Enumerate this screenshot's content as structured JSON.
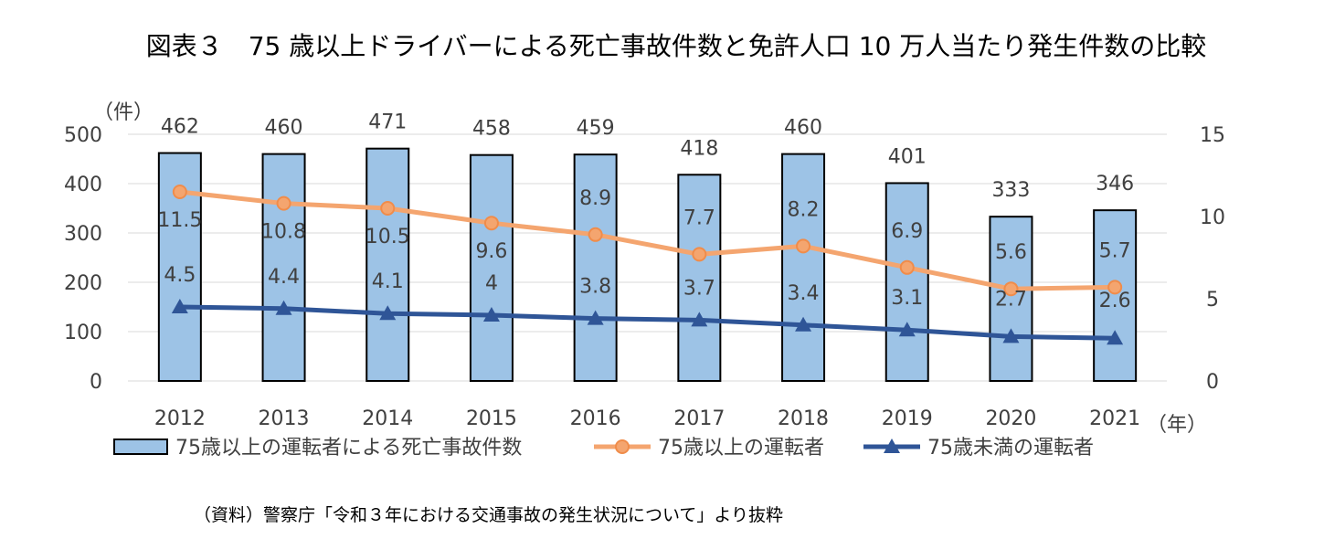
{
  "title": "図表３　75 歳以上ドライバーによる死亡事故件数と免許人口 10 万人当たり発生件数の比較",
  "source": "（資料）警察庁「令和３年における交通事故の発生状況について」より抜粋",
  "colors": {
    "bar_fill": "#9dc3e6",
    "bar_stroke": "#000000",
    "line_75_over": "#f4a56f",
    "line_75_under": "#2f5597",
    "grid": "#d9d9d9",
    "text": "#404040"
  },
  "chart_data": {
    "type": "bar",
    "categories": [
      "2012",
      "2013",
      "2014",
      "2015",
      "2016",
      "2017",
      "2018",
      "2019",
      "2020",
      "2021"
    ],
    "series": [
      {
        "name": "75歳以上の運転者による死亡事故件数",
        "type": "bar",
        "axis": "left",
        "values": [
          462,
          460,
          471,
          458,
          459,
          418,
          460,
          401,
          333,
          346
        ],
        "labels": [
          "462",
          "460",
          "471",
          "458",
          "459",
          "418",
          "460",
          "401",
          "333",
          "346"
        ]
      },
      {
        "name": "75歳以上の運転者",
        "type": "line",
        "marker": "circle",
        "axis": "right",
        "values": [
          11.5,
          10.8,
          10.5,
          9.6,
          8.9,
          7.7,
          8.2,
          6.9,
          5.6,
          5.7
        ],
        "labels": [
          "11.5",
          "10.8",
          "10.5",
          "9.6",
          "8.9",
          "7.7",
          "8.2",
          "6.9",
          "5.6",
          "5.7"
        ]
      },
      {
        "name": "75歳未満の運転者",
        "type": "line",
        "marker": "triangle",
        "axis": "right",
        "values": [
          4.5,
          4.4,
          4.1,
          4,
          3.8,
          3.7,
          3.4,
          3.1,
          2.7,
          2.6
        ],
        "labels": [
          "4.5",
          "4.4",
          "4.1",
          "4",
          "3.8",
          "3.7",
          "3.4",
          "3.1",
          "2.7",
          "2.6"
        ]
      }
    ],
    "y_left": {
      "unit": "（件）",
      "ylim": [
        0,
        500
      ],
      "ticks": [
        "0",
        "100",
        "200",
        "300",
        "400",
        "500"
      ]
    },
    "y_right": {
      "ylim": [
        0,
        15
      ],
      "ticks": [
        "0",
        "5",
        "10",
        "15"
      ]
    },
    "x_unit": "（年）",
    "grid": true,
    "legend": "bottom"
  }
}
